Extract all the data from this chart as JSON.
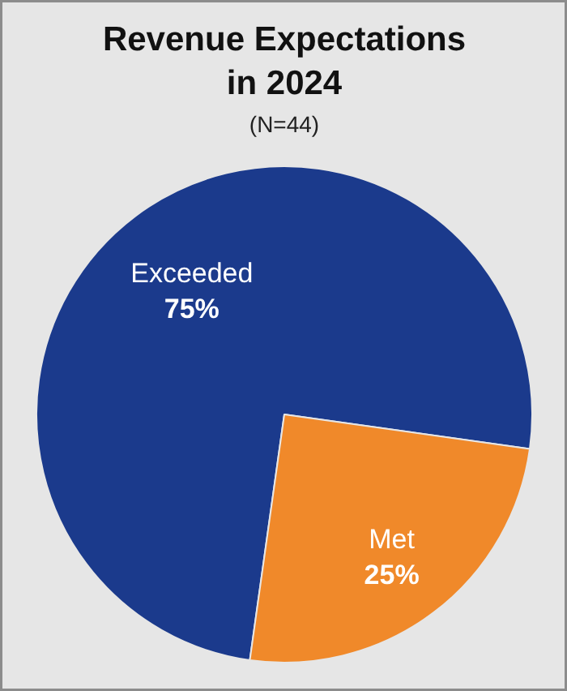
{
  "chart_data": {
    "type": "pie",
    "title": "Revenue Expectations in 2024",
    "subtitle": "(N=44)",
    "categories": [
      "Exceeded",
      "Met"
    ],
    "values": [
      75,
      25
    ],
    "colors": [
      "#1b3a8c",
      "#f0892a"
    ],
    "value_labels": [
      "75%",
      "25%"
    ]
  }
}
